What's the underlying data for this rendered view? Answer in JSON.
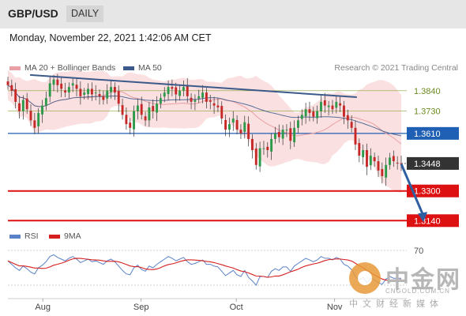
{
  "header": {
    "pair": "GBP/USD",
    "period": "DAILY"
  },
  "datetime": "Monday, November 22, 2021 1:42:06 AM CET",
  "legend": {
    "ma20": "MA 20 + Bollinger Bands",
    "ma50": "MA 50",
    "credit": "Research © 2021 Trading Central"
  },
  "rsi_legend": {
    "rsi": "RSI",
    "ma9": "9MA"
  },
  "colors": {
    "ma20": "#e8a0a4",
    "ma50": "#3b5a8a",
    "rsi": "#5b82c8",
    "ma9": "#d62020",
    "up": "#2d9a4a",
    "down": "#c62828",
    "support": "#dd1111",
    "pivot": "#1f5fb4",
    "resistance": "#8aa33a"
  },
  "watermark": {
    "cn": "中金网",
    "url": "CNGOLD.COM.CN",
    "sub": "中文财经新媒体"
  },
  "chart_data": [
    {
      "type": "candlestick",
      "y_range": [
        1.312,
        1.392
      ],
      "x_range": [
        "2021-07-21",
        "2021-11-22"
      ],
      "x_ticks": [
        {
          "label": "Aug",
          "date": "2021-08-01"
        },
        {
          "label": "Sep",
          "date": "2021-09-01"
        },
        {
          "label": "Oct",
          "date": "2021-10-01"
        },
        {
          "label": "Nov",
          "date": "2021-11-01"
        }
      ],
      "levels": [
        {
          "value": 1.384,
          "label": "1.3840",
          "kind": "resistance"
        },
        {
          "value": 1.373,
          "label": "1.3730",
          "kind": "resistance"
        },
        {
          "value": 1.361,
          "label": "1.3610",
          "kind": "pivot"
        },
        {
          "value": 1.3448,
          "label": "1.3448",
          "kind": "last"
        },
        {
          "value": 1.33,
          "label": "1.3300",
          "kind": "support"
        },
        {
          "value": 1.314,
          "label": "1.3140",
          "kind": "support"
        }
      ],
      "trendline": [
        {
          "date": "2021-07-28",
          "value": 1.3925
        },
        {
          "date": "2021-11-08",
          "value": 1.3805
        }
      ],
      "forecast_arrow": [
        {
          "date": "2021-11-22",
          "value": 1.3445
        },
        {
          "date": "2021-11-29",
          "value": 1.314
        }
      ],
      "closes": [
        1.387,
        1.384,
        1.378,
        1.373,
        1.379,
        1.374,
        1.368,
        1.364,
        1.372,
        1.376,
        1.38,
        1.388,
        1.39,
        1.387,
        1.385,
        1.383,
        1.386,
        1.388,
        1.385,
        1.381,
        1.383,
        1.385,
        1.382,
        1.383,
        1.381,
        1.379,
        1.384,
        1.386,
        1.383,
        1.377,
        1.371,
        1.366,
        1.364,
        1.373,
        1.376,
        1.371,
        1.368,
        1.375,
        1.373,
        1.377,
        1.38,
        1.383,
        1.386,
        1.385,
        1.382,
        1.384,
        1.386,
        1.381,
        1.378,
        1.379,
        1.381,
        1.383,
        1.378,
        1.378,
        1.376,
        1.375,
        1.369,
        1.363,
        1.366,
        1.369,
        1.363,
        1.361,
        1.367,
        1.358,
        1.352,
        1.344,
        1.353,
        1.353,
        1.352,
        1.358,
        1.361,
        1.359,
        1.363,
        1.363,
        1.357,
        1.364,
        1.368,
        1.371,
        1.374,
        1.372,
        1.37,
        1.373,
        1.378,
        1.376,
        1.376,
        1.374,
        1.378,
        1.376,
        1.37,
        1.368,
        1.364,
        1.355,
        1.349,
        1.352,
        1.343,
        1.349,
        1.346,
        1.341,
        1.338,
        1.344,
        1.348,
        1.346,
        1.345,
        1.3448
      ]
    },
    {
      "type": "line",
      "name": "RSI",
      "y_range": [
        20,
        80
      ],
      "y_ticks": [
        {
          "label": "70",
          "value": 70
        }
      ],
      "x_range": [
        "2021-07-21",
        "2021-11-22"
      ],
      "values": [
        58,
        54,
        50,
        47,
        52,
        49,
        45,
        43,
        50,
        53,
        57,
        63,
        65,
        62,
        60,
        58,
        61,
        63,
        60,
        56,
        58,
        60,
        57,
        58,
        56,
        54,
        58,
        60,
        57,
        52,
        47,
        43,
        42,
        50,
        53,
        48,
        46,
        52,
        50,
        54,
        57,
        60,
        63,
        61,
        58,
        60,
        62,
        57,
        54,
        55,
        57,
        59,
        54,
        54,
        52,
        51,
        46,
        41,
        44,
        47,
        42,
        40,
        47,
        39,
        35,
        30,
        40,
        40,
        39,
        46,
        49,
        47,
        51,
        51,
        46,
        52,
        55,
        58,
        61,
        59,
        57,
        59,
        63,
        61,
        61,
        59,
        62,
        60,
        54,
        52,
        48,
        40,
        36,
        39,
        33,
        38,
        36,
        33,
        31,
        37,
        40,
        38,
        38,
        38
      ]
    }
  ]
}
